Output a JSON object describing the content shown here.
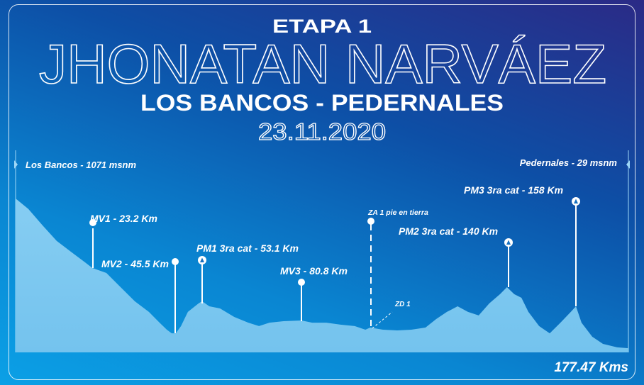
{
  "header": {
    "stage": "ETAPA 1",
    "rider": "JHONATAN NARVÁEZ",
    "route": "LOS BANCOS - PEDERNALES",
    "date": "23.11.2020"
  },
  "start_label": "Los Bancos - 1071 msnm",
  "finish_label": "Pedernales - 29 msnm",
  "total_distance": "177.47 Kms",
  "markers": {
    "mv1": "MV1 - 23.2 Km",
    "mv2": "MV2 - 45.5 Km",
    "pm1": "PM1 3ra cat - 53.1 Km",
    "mv3": "MV3 - 80.8 Km",
    "za1": "ZA 1 pie en tierra",
    "zd1": "ZD 1",
    "pm2": "PM2 3ra cat - 140 Km",
    "pm3": "PM3 3ra cat - 158  Km"
  },
  "colors": {
    "profile": "#7dc8f0",
    "text": "#ffffff"
  },
  "chart_data": {
    "type": "area",
    "title": "ETAPA 1",
    "xlabel": "Km",
    "ylabel": "msnm",
    "xlim": [
      0,
      177.47
    ],
    "ylim": [
      0,
      1071
    ],
    "grid": false,
    "km": [
      0,
      3.7,
      7.8,
      11.9,
      16.0,
      20.1,
      22.2,
      26.3,
      30.4,
      34.5,
      38.6,
      41.7,
      43.8,
      45.2,
      46.4,
      47.9,
      49.9,
      53.0,
      54.0,
      56.1,
      59.2,
      63.3,
      67.4,
      70.5,
      73.5,
      77.6,
      82.8,
      85.9,
      90.0,
      94.1,
      98.2,
      101.3,
      102.7,
      106.4,
      110.5,
      114.6,
      118.7,
      121.8,
      124.9,
      128.0,
      131.0,
      134.1,
      137.2,
      140.3,
      142.3,
      144.4,
      146.5,
      148.5,
      151.6,
      154.7,
      157.8,
      160.8,
      162.3,
      163.9,
      167.0,
      170.1,
      174.2,
      177.47
    ],
    "elevation": [
      1071,
      998,
      884,
      776,
      701,
      627,
      588,
      553,
      454,
      356,
      282,
      207,
      158,
      133,
      133,
      183,
      282,
      341,
      356,
      321,
      306,
      247,
      207,
      183,
      207,
      217,
      222,
      207,
      207,
      193,
      183,
      158,
      173,
      158,
      153,
      158,
      173,
      232,
      282,
      321,
      282,
      257,
      341,
      405,
      454,
      405,
      380,
      282,
      183,
      133,
      207,
      282,
      321,
      207,
      109,
      59,
      35,
      29
    ]
  }
}
